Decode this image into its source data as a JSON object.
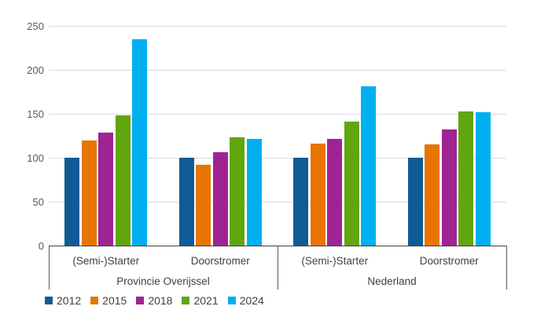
{
  "chart_data": {
    "type": "bar",
    "title": "",
    "ylim": [
      0,
      250
    ],
    "yticks": [
      0,
      50,
      100,
      150,
      200,
      250
    ],
    "grid": true,
    "legend_position": "bottom-left",
    "category_groups": [
      {
        "label": "Provincie Overijssel",
        "categories": [
          "(Semi-)Starter",
          "Doorstromer"
        ]
      },
      {
        "label": "Nederland",
        "categories": [
          "(Semi-)Starter",
          "Doorstromer"
        ]
      }
    ],
    "categories": [
      "(Semi-)Starter",
      "Doorstromer",
      "(Semi-)Starter",
      "Doorstromer"
    ],
    "series": [
      {
        "name": "2012",
        "color": "#0f5b95",
        "values": [
          100,
          100,
          100,
          100
        ]
      },
      {
        "name": "2015",
        "color": "#e87502",
        "values": [
          120,
          92,
          116,
          115
        ]
      },
      {
        "name": "2018",
        "color": "#a02394",
        "values": [
          129,
          106,
          121,
          132
        ]
      },
      {
        "name": "2021",
        "color": "#61a60e",
        "values": [
          148,
          123,
          141,
          153
        ]
      },
      {
        "name": "2024",
        "color": "#00b0f0",
        "values": [
          235,
          121,
          181,
          152
        ]
      }
    ]
  },
  "colors": {
    "background": "#ffffff",
    "gridline": "#d9d9d9",
    "axis_line": "#404040",
    "box_line": "#595959",
    "tick_label": "#595959",
    "text_label": "#404040"
  }
}
